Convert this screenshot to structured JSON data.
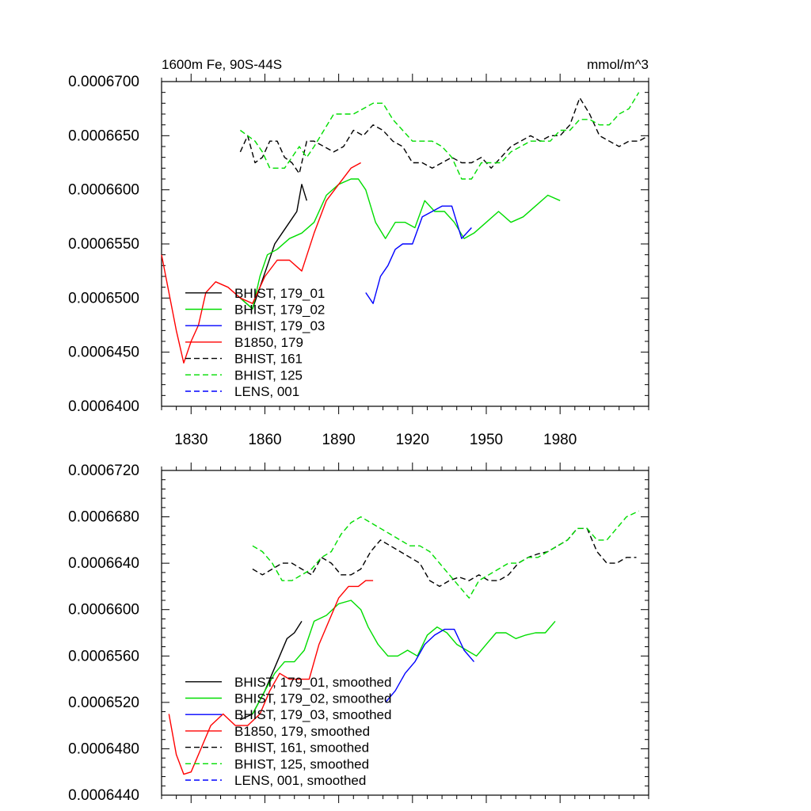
{
  "chart_data": [
    {
      "type": "line",
      "title": "1600m Fe, 90S-44S",
      "units": "mmol/m^3",
      "xlim": [
        1818,
        2016
      ],
      "ylim": [
        0.00064,
        0.00067
      ],
      "x_ticks": [
        1830,
        1860,
        1890,
        1920,
        1950,
        1980
      ],
      "x_tick_labels": [
        "1830",
        "1860",
        "1890",
        "1920",
        "1950",
        "1980"
      ],
      "y_ticks": [
        0.00064,
        0.000645,
        0.00065,
        0.000655,
        0.00066,
        0.000665,
        0.00067
      ],
      "y_tick_labels": [
        "0.0006400",
        "0.0006450",
        "0.0006500",
        "0.0006550",
        "0.0006600",
        "0.0006650",
        "0.0006700"
      ],
      "legend": "bottom-left",
      "series": [
        {
          "name": "BHIST, 179_01",
          "color": "#000000",
          "dash": "solid",
          "x": [
            1850,
            1855,
            1858,
            1861,
            1864,
            1867,
            1870,
            1873,
            1875,
            1877
          ],
          "y": [
            0.00065,
            0.000649,
            0.000651,
            0.000653,
            0.000655,
            0.000656,
            0.000657,
            0.000658,
            0.0006605,
            0.000659
          ]
        },
        {
          "name": "BHIST, 179_02",
          "color": "#00dd00",
          "dash": "solid",
          "x": [
            1850,
            1855,
            1858,
            1861,
            1865,
            1870,
            1875,
            1880,
            1885,
            1890,
            1895,
            1898,
            1901,
            1905,
            1909,
            1913,
            1917,
            1921,
            1925,
            1929,
            1933,
            1937,
            1941,
            1945,
            1950,
            1955,
            1960,
            1965,
            1970,
            1975,
            1980
          ],
          "y": [
            0.00065,
            0.000649,
            0.000652,
            0.000654,
            0.0006545,
            0.0006555,
            0.000656,
            0.000657,
            0.0006595,
            0.0006605,
            0.000661,
            0.000661,
            0.00066,
            0.000657,
            0.0006555,
            0.000657,
            0.000657,
            0.0006565,
            0.000659,
            0.000658,
            0.000658,
            0.000657,
            0.0006555,
            0.000656,
            0.000657,
            0.000658,
            0.000657,
            0.0006575,
            0.0006585,
            0.0006595,
            0.000659
          ]
        },
        {
          "name": "BHIST, 179_03",
          "color": "#0000ff",
          "dash": "solid",
          "x": [
            1901,
            1904,
            1907,
            1910,
            1913,
            1916,
            1920,
            1924,
            1928,
            1932,
            1936,
            1940,
            1944
          ],
          "y": [
            0.0006505,
            0.0006495,
            0.000652,
            0.000653,
            0.0006545,
            0.000655,
            0.000655,
            0.0006575,
            0.000658,
            0.0006585,
            0.0006585,
            0.0006555,
            0.0006565
          ]
        },
        {
          "name": "B1850, 179",
          "color": "#ff0000",
          "dash": "solid",
          "x": [
            1818,
            1821,
            1824,
            1827,
            1830,
            1833,
            1836,
            1840,
            1845,
            1850,
            1855,
            1860,
            1865,
            1870,
            1875,
            1880,
            1885,
            1890,
            1895,
            1899
          ],
          "y": [
            0.000654,
            0.0006505,
            0.000647,
            0.000644,
            0.000646,
            0.0006475,
            0.0006505,
            0.0006515,
            0.000651,
            0.00065,
            0.0006495,
            0.000652,
            0.0006535,
            0.0006535,
            0.0006525,
            0.000656,
            0.000659,
            0.0006605,
            0.000662,
            0.0006625
          ]
        },
        {
          "name": "BHIST, 161",
          "color": "#000000",
          "dash": "dash",
          "x": [
            1850,
            1853,
            1856,
            1859,
            1862,
            1865,
            1868,
            1871,
            1874,
            1877,
            1880,
            1884,
            1888,
            1892,
            1896,
            1900,
            1904,
            1908,
            1912,
            1916,
            1920,
            1924,
            1928,
            1932,
            1936,
            1940,
            1944,
            1948,
            1952,
            1956,
            1960,
            1964,
            1968,
            1972,
            1976,
            1980,
            1984,
            1988,
            1992,
            1996,
            2000,
            2004,
            2008,
            2012,
            2016
          ],
          "y": [
            0.0006635,
            0.000665,
            0.0006625,
            0.000663,
            0.0006645,
            0.0006645,
            0.000663,
            0.0006625,
            0.0006615,
            0.0006645,
            0.0006645,
            0.000664,
            0.0006635,
            0.000664,
            0.0006655,
            0.000665,
            0.000666,
            0.0006655,
            0.0006645,
            0.000664,
            0.0006625,
            0.0006625,
            0.000662,
            0.0006625,
            0.000663,
            0.0006625,
            0.0006625,
            0.000663,
            0.000662,
            0.000663,
            0.000664,
            0.0006645,
            0.000665,
            0.0006645,
            0.000665,
            0.000665,
            0.000666,
            0.0006685,
            0.000667,
            0.000665,
            0.0006645,
            0.000664,
            0.0006645,
            0.0006645,
            0.000665
          ]
        },
        {
          "name": "BHIST, 125",
          "color": "#00dd00",
          "dash": "dash",
          "x": [
            1850,
            1853,
            1856,
            1859,
            1862,
            1865,
            1868,
            1871,
            1874,
            1877,
            1880,
            1884,
            1888,
            1892,
            1896,
            1900,
            1904,
            1908,
            1912,
            1916,
            1920,
            1924,
            1928,
            1932,
            1936,
            1940,
            1944,
            1948,
            1952,
            1956,
            1960,
            1964,
            1968,
            1972,
            1976,
            1980,
            1984,
            1988,
            1992,
            1996,
            2000,
            2004,
            2008,
            2012
          ],
          "y": [
            0.0006655,
            0.000665,
            0.0006645,
            0.0006635,
            0.000662,
            0.000662,
            0.000662,
            0.000663,
            0.000664,
            0.000663,
            0.000664,
            0.0006655,
            0.000667,
            0.000667,
            0.000667,
            0.0006675,
            0.000668,
            0.000668,
            0.0006665,
            0.0006655,
            0.0006645,
            0.0006645,
            0.0006645,
            0.000664,
            0.000663,
            0.000661,
            0.000661,
            0.0006625,
            0.0006625,
            0.0006625,
            0.0006635,
            0.000664,
            0.0006645,
            0.0006645,
            0.0006645,
            0.0006655,
            0.0006655,
            0.0006665,
            0.0006665,
            0.000666,
            0.000666,
            0.000667,
            0.0006675,
            0.000669
          ]
        },
        {
          "name": "LENS, 001",
          "color": "#0000ff",
          "dash": "dash",
          "x": [],
          "y": []
        }
      ]
    },
    {
      "type": "line",
      "title": "",
      "xlim": [
        1818,
        2016
      ],
      "ylim": [
        0.000644,
        0.000672
      ],
      "x_ticks": [
        1830,
        1860,
        1890,
        1920,
        1950,
        1980
      ],
      "y_ticks": [
        0.000644,
        0.000648,
        0.000652,
        0.000656,
        0.00066,
        0.000664,
        0.000668,
        0.000672
      ],
      "y_tick_labels": [
        "0.0006440",
        "0.0006480",
        "0.0006520",
        "0.0006560",
        "0.0006600",
        "0.0006640",
        "0.0006680",
        "0.0006720"
      ],
      "legend": "bottom-left",
      "series": [
        {
          "name": "BHIST, 179_01, smoothed",
          "color": "#000000",
          "dash": "solid",
          "x": [
            1850,
            1855,
            1860,
            1863,
            1866,
            1869,
            1872,
            1875
          ],
          "y": [
            0.0006505,
            0.000651,
            0.000653,
            0.0006545,
            0.000656,
            0.0006575,
            0.000658,
            0.000659
          ]
        },
        {
          "name": "BHIST, 179_02, smoothed",
          "color": "#00dd00",
          "dash": "solid",
          "x": [
            1855,
            1860,
            1864,
            1868,
            1872,
            1876,
            1880,
            1885,
            1890,
            1895,
            1899,
            1902,
            1906,
            1910,
            1914,
            1918,
            1922,
            1926,
            1930,
            1934,
            1938,
            1942,
            1946,
            1950,
            1954,
            1958,
            1962,
            1966,
            1970,
            1974,
            1978
          ],
          "y": [
            0.000651,
            0.000653,
            0.0006545,
            0.0006555,
            0.0006555,
            0.0006565,
            0.000659,
            0.0006595,
            0.0006605,
            0.0006608,
            0.00066,
            0.0006585,
            0.000657,
            0.000656,
            0.000656,
            0.0006565,
            0.000656,
            0.0006578,
            0.0006585,
            0.000658,
            0.000657,
            0.0006565,
            0.000656,
            0.000657,
            0.000658,
            0.000658,
            0.0006575,
            0.0006578,
            0.000658,
            0.000658,
            0.000659
          ]
        },
        {
          "name": "BHIST, 179_03, smoothed",
          "color": "#0000ff",
          "dash": "solid",
          "x": [
            1909,
            1913,
            1917,
            1921,
            1925,
            1929,
            1933,
            1937,
            1941,
            1945
          ],
          "y": [
            0.000652,
            0.000653,
            0.0006545,
            0.0006555,
            0.000657,
            0.0006578,
            0.0006583,
            0.0006583,
            0.0006565,
            0.0006555
          ]
        },
        {
          "name": "B1850, 179, smoothed",
          "color": "#ff0000",
          "dash": "solid",
          "x": [
            1821,
            1824,
            1827,
            1830,
            1834,
            1838,
            1843,
            1848,
            1853,
            1858,
            1862,
            1866,
            1870,
            1874,
            1878,
            1882,
            1886,
            1890,
            1894,
            1898,
            1901,
            1904
          ],
          "y": [
            0.000651,
            0.0006475,
            0.0006458,
            0.000646,
            0.000648,
            0.00065,
            0.000651,
            0.00065,
            0.00065,
            0.000651,
            0.000653,
            0.0006545,
            0.000654,
            0.000654,
            0.000654,
            0.000657,
            0.000659,
            0.000661,
            0.000662,
            0.000662,
            0.0006625,
            0.0006625
          ]
        },
        {
          "name": "BHIST, 161, smoothed",
          "color": "#000000",
          "dash": "dash",
          "x": [
            1855,
            1859,
            1863,
            1867,
            1871,
            1875,
            1879,
            1883,
            1887,
            1891,
            1895,
            1899,
            1903,
            1907,
            1911,
            1915,
            1919,
            1923,
            1927,
            1931,
            1935,
            1939,
            1943,
            1947,
            1951,
            1955,
            1959,
            1963,
            1967,
            1971,
            1975,
            1979,
            1983,
            1987,
            1991,
            1995,
            1999,
            2003,
            2007,
            2011
          ],
          "y": [
            0.0006635,
            0.000663,
            0.0006635,
            0.000664,
            0.000664,
            0.0006635,
            0.000663,
            0.0006645,
            0.000664,
            0.000663,
            0.000663,
            0.0006635,
            0.000665,
            0.000666,
            0.0006655,
            0.000665,
            0.0006645,
            0.000664,
            0.0006625,
            0.000662,
            0.0006625,
            0.0006628,
            0.0006625,
            0.000663,
            0.0006625,
            0.0006625,
            0.000663,
            0.000664,
            0.0006645,
            0.0006648,
            0.000665,
            0.0006655,
            0.000666,
            0.000667,
            0.000667,
            0.000665,
            0.000664,
            0.000664,
            0.0006645,
            0.0006645
          ]
        },
        {
          "name": "BHIST, 125, smoothed",
          "color": "#00dd00",
          "dash": "dash",
          "x": [
            1855,
            1859,
            1863,
            1867,
            1871,
            1875,
            1879,
            1883,
            1887,
            1891,
            1895,
            1899,
            1903,
            1907,
            1911,
            1915,
            1919,
            1923,
            1927,
            1931,
            1935,
            1939,
            1943,
            1947,
            1951,
            1955,
            1959,
            1963,
            1967,
            1971,
            1975,
            1979,
            1983,
            1987,
            1991,
            1995,
            1999,
            2003,
            2007,
            2012
          ],
          "y": [
            0.0006655,
            0.000665,
            0.000664,
            0.0006625,
            0.0006625,
            0.000663,
            0.0006635,
            0.0006645,
            0.000665,
            0.0006665,
            0.0006675,
            0.000668,
            0.0006675,
            0.000667,
            0.0006665,
            0.000666,
            0.0006655,
            0.0006655,
            0.000665,
            0.000664,
            0.000663,
            0.000662,
            0.000661,
            0.0006625,
            0.000663,
            0.0006635,
            0.000664,
            0.000664,
            0.0006645,
            0.0006645,
            0.000665,
            0.0006655,
            0.000666,
            0.000667,
            0.000667,
            0.000666,
            0.000666,
            0.000667,
            0.000668,
            0.0006685
          ]
        },
        {
          "name": "LENS, 001, smoothed",
          "color": "#0000ff",
          "dash": "dash",
          "x": [],
          "y": []
        }
      ]
    }
  ]
}
